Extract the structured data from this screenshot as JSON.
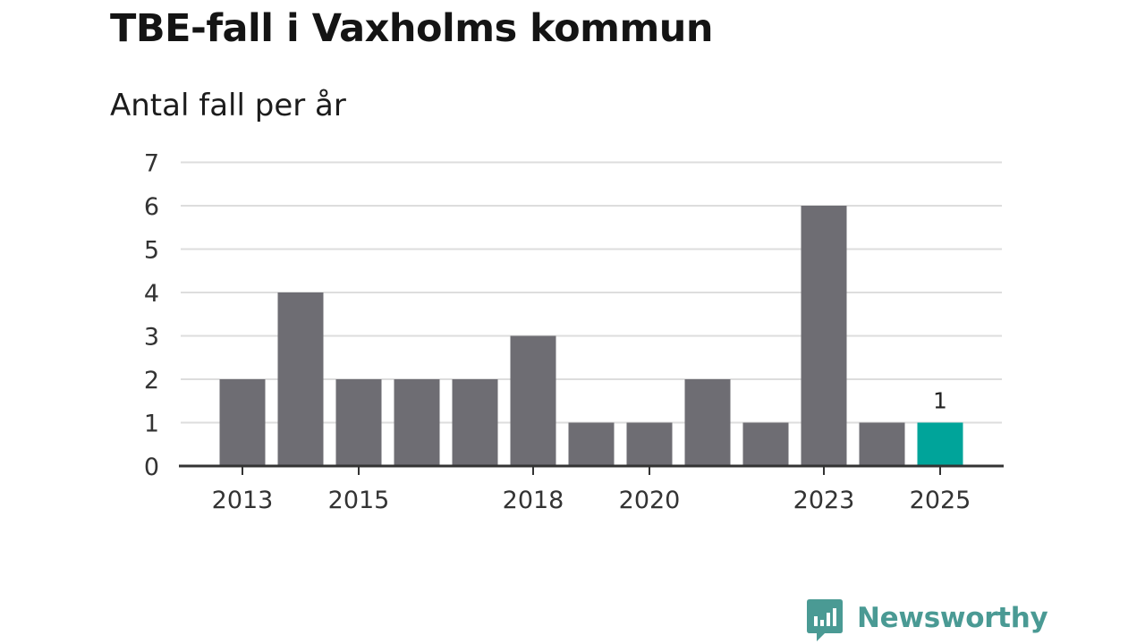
{
  "title": "TBE-fall i Vaxholms kommun",
  "subtitle": "Antal fall per år",
  "brand": {
    "name": "Newsworthy",
    "icon": "newsworthy-logo-icon",
    "color": "#4a9a94"
  },
  "chart_data": {
    "type": "bar",
    "title": "TBE-fall i Vaxholms kommun",
    "subtitle": "Antal fall per år",
    "xlabel": "",
    "ylabel": "",
    "categories": [
      "2013",
      "2014",
      "2015",
      "2016",
      "2017",
      "2018",
      "2019",
      "2020",
      "2021",
      "2022",
      "2023",
      "2024",
      "2025"
    ],
    "values": [
      2,
      4,
      2,
      2,
      2,
      3,
      1,
      1,
      2,
      1,
      6,
      1,
      1
    ],
    "ylim": [
      0,
      7
    ],
    "yticks": [
      0,
      1,
      2,
      3,
      4,
      5,
      6,
      7
    ],
    "xtick_labels": [
      "2013",
      "2015",
      "2018",
      "2020",
      "2023",
      "2025"
    ],
    "highlight": {
      "category": "2025",
      "value_label": "1"
    },
    "grid": true,
    "legend": "none",
    "colors": {
      "bar": "#6e6d73",
      "highlight": "#00a49a",
      "grid": "#dddddd",
      "axis": "#333333",
      "tick_text": "#333333"
    }
  }
}
